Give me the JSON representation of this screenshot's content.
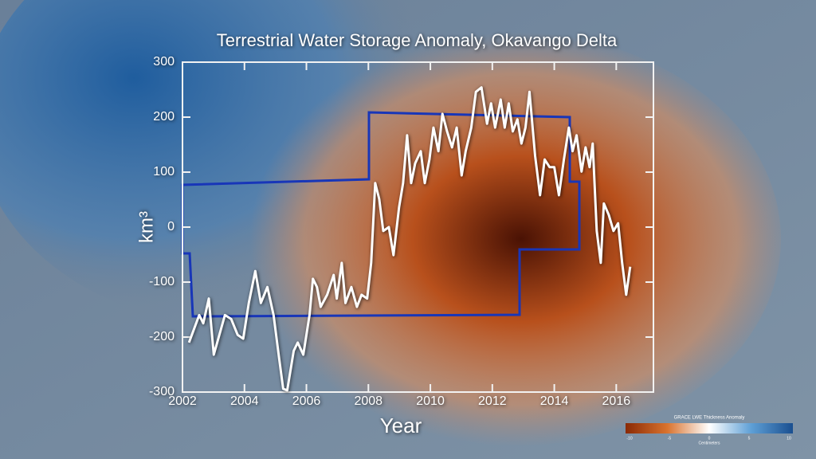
{
  "chart_data": {
    "type": "line",
    "title": "Terrestrial Water Storage Anomaly, Okavango Delta",
    "xlabel": "Year",
    "ylabel": "km³",
    "xlim": [
      2002,
      2017.2
    ],
    "xticks": [
      2002,
      2004,
      2006,
      2008,
      2010,
      2012,
      2014,
      2016
    ],
    "ylim": [
      -300,
      300
    ],
    "yticks": [
      -300,
      -200,
      -100,
      0,
      100,
      200,
      300
    ],
    "series": [
      {
        "color": "#ffffff",
        "x": [
          2002.21,
          2002.54,
          2002.67,
          2002.85,
          2003.01,
          2003.19,
          2003.37,
          2003.57,
          2003.78,
          2003.96,
          2004.14,
          2004.35,
          2004.53,
          2004.74,
          2004.94,
          2005.12,
          2005.25,
          2005.38,
          2005.59,
          2005.72,
          2005.9,
          2006.1,
          2006.21,
          2006.34,
          2006.46,
          2006.67,
          2006.88,
          2006.98,
          2007.14,
          2007.26,
          2007.45,
          2007.63,
          2007.78,
          2007.96,
          2008.09,
          2008.22,
          2008.35,
          2008.48,
          2008.66,
          2008.81,
          2008.99,
          2009.12,
          2009.25,
          2009.38,
          2009.51,
          2009.69,
          2009.82,
          2009.97,
          2010.1,
          2010.26,
          2010.39,
          2010.54,
          2010.7,
          2010.85,
          2011.01,
          2011.14,
          2011.32,
          2011.47,
          2011.65,
          2011.83,
          2011.96,
          2012.09,
          2012.27,
          2012.4,
          2012.53,
          2012.66,
          2012.81,
          2012.94,
          2013.07,
          2013.2,
          2013.38,
          2013.54,
          2013.69,
          2013.85,
          2014.0,
          2014.15,
          2014.31,
          2014.47,
          2014.59,
          2014.72,
          2014.88,
          2015.01,
          2015.14,
          2015.24,
          2015.37,
          2015.5,
          2015.6,
          2015.76,
          2015.91,
          2016.06,
          2016.19,
          2016.32,
          2016.45
        ],
        "values": [
          -210,
          -160,
          -175,
          -130,
          -232,
          -196,
          -160,
          -167,
          -196,
          -203,
          -138,
          -80,
          -138,
          -109,
          -160,
          -239,
          -294,
          -297,
          -225,
          -210,
          -232,
          -160,
          -94,
          -109,
          -145,
          -123,
          -87,
          -130,
          -65,
          -138,
          -109,
          -145,
          -123,
          -130,
          -65,
          80,
          51,
          -7,
          0,
          -51,
          36,
          80,
          167,
          80,
          116,
          138,
          80,
          123,
          181,
          138,
          206,
          174,
          145,
          181,
          94,
          138,
          181,
          246,
          254,
          188,
          225,
          181,
          232,
          181,
          225,
          174,
          196,
          152,
          181,
          246,
          130,
          58,
          123,
          109,
          109,
          58,
          123,
          181,
          138,
          167,
          101,
          145,
          109,
          152,
          -7,
          -65,
          43,
          22,
          -7,
          7,
          -65,
          -123,
          -72
        ]
      }
    ]
  },
  "colorbar": {
    "title": "GRACE LWE Thickness Anomaly",
    "ticks": [
      -10,
      -5,
      0,
      5,
      10
    ],
    "unit": "Centimeters"
  }
}
